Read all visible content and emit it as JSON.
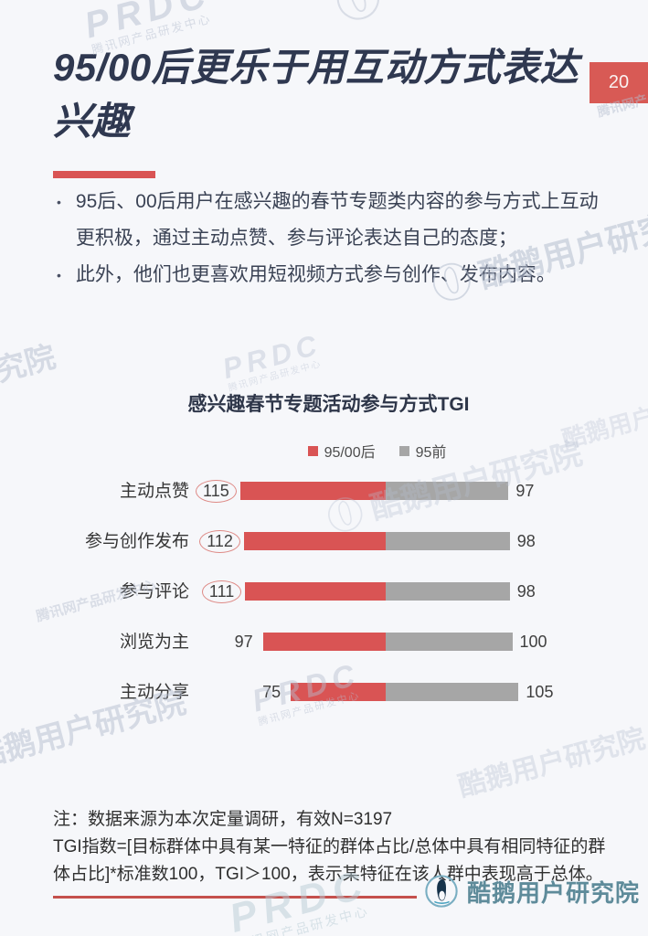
{
  "header": {
    "title": "95/00后更乐于用互动方式表达兴趣",
    "page_number": "20"
  },
  "bullets": [
    "95后、00后用户在感兴趣的春节专题类内容的参与方式上互动更积极，通过主动点赞、参与评论表达自己的态度；",
    "此外，他们也更喜欢用短视频方式参与创作、发布内容。"
  ],
  "chart_data": {
    "type": "bar",
    "variant": "diverging-stacked-horizontal",
    "title": "感兴趣春节专题活动参与方式TGI",
    "categories": [
      "主动点赞",
      "参与创作发布",
      "参与评论",
      "浏览为主",
      "主动分享"
    ],
    "series": [
      {
        "name": "95/00后",
        "color": "#d95454",
        "values": [
          115,
          112,
          111,
          97,
          75
        ],
        "side": "left"
      },
      {
        "name": "95前",
        "color": "#a6a6a6",
        "values": [
          97,
          98,
          98,
          100,
          105
        ],
        "side": "right"
      }
    ],
    "circled_values": [
      true,
      true,
      true,
      false,
      false
    ],
    "legend_position": "top",
    "value_labels": "outside-ends"
  },
  "notes": [
    "注：数据来源为本次定量调研，有效N=3197",
    "TGI指数=[目标群体中具有某一特征的群体占比/总体中具有相同特征的群体占比]*标准数100，TGI＞100，表示某特征在该人群中表现高于总体。"
  ],
  "footer": {
    "brand": "酷鹅用户研究院"
  },
  "watermarks": {
    "prdc": "PRDC",
    "dept": "腾讯网产品研发中心",
    "brand": "酷鹅用户研究院"
  },
  "colors": {
    "accent_red": "#d95454",
    "bar_gray": "#a6a6a6",
    "title_navy": "#2f3850",
    "brand_teal": "#5e8b9a",
    "page_bg": "#f6f7fa"
  }
}
